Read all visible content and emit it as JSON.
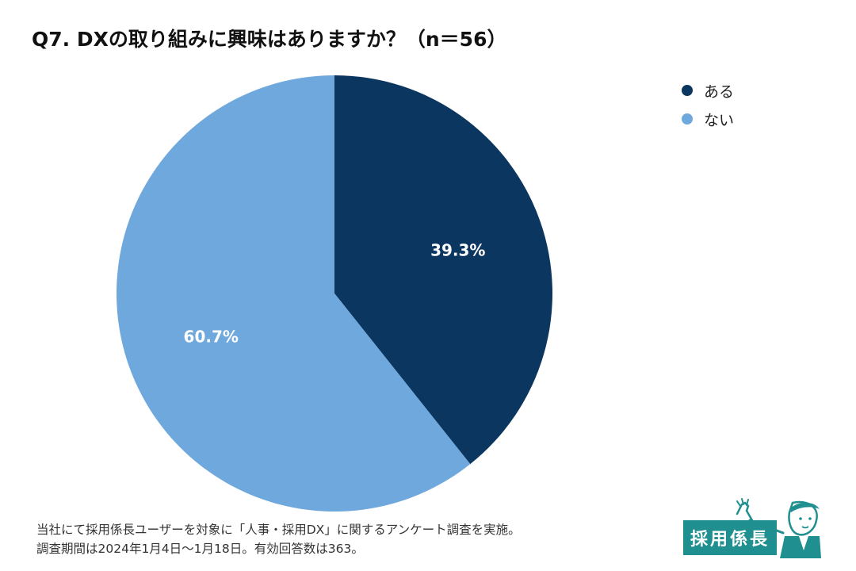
{
  "title": "Q7. DXの取り組みに興味はありますか？（n＝56）",
  "chart_data": {
    "type": "pie",
    "title": "Q7. DXの取り組みに興味はありますか？（n＝56）",
    "slices": [
      {
        "label": "ある",
        "value": 39.3,
        "display": "39.3%",
        "color": "#0b3660"
      },
      {
        "label": "ない",
        "value": 60.7,
        "display": "60.7%",
        "color": "#6fa8dc"
      }
    ],
    "legend_position": "top-right"
  },
  "legend": [
    {
      "label": "ある",
      "color": "#0b3660"
    },
    {
      "label": "ない",
      "color": "#6fa8dc"
    }
  ],
  "footnote": {
    "line1": "当社にて採用係長ユーザーを対象に「人事・採用DX」に関するアンケート調査を実施。",
    "line2": "調査期間は2024年1月4日〜1月18日。有効回答数は363。"
  },
  "logo": {
    "text": "採用係長",
    "color": "#1f8f8f"
  }
}
